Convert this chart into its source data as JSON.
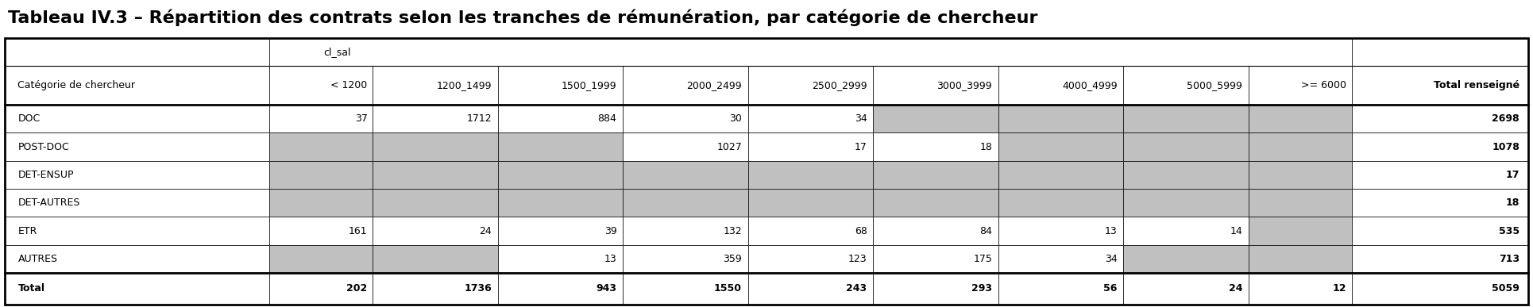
{
  "title": "Tableau IV.3 – Répartition des contrats selon les tranches de rémunération, par catégorie de chercheur",
  "col_header_row2": [
    "Catégorie de chercheur",
    "< 1200",
    "1200_1499",
    "1500_1999",
    "2000_2499",
    "2500_2999",
    "3000_3999",
    "4000_4999",
    "5000_5999",
    ">= 6000",
    "Total renseigné"
  ],
  "rows": [
    {
      "label": "DOC",
      "vals": [
        "37",
        "1712",
        "884",
        "30",
        "34",
        "",
        "",
        "",
        "",
        "2698"
      ],
      "gray": [
        false,
        false,
        false,
        false,
        false,
        true,
        true,
        true,
        true,
        false
      ]
    },
    {
      "label": "POST-DOC",
      "vals": [
        "",
        "",
        "",
        "1027",
        "17",
        "18",
        "",
        "",
        "",
        "1078"
      ],
      "gray": [
        true,
        true,
        true,
        false,
        false,
        false,
        true,
        true,
        true,
        false
      ]
    },
    {
      "label": "DET-ENSUP",
      "vals": [
        "",
        "",
        "",
        "",
        "",
        "",
        "",
        "",
        "",
        "17"
      ],
      "gray": [
        true,
        true,
        true,
        true,
        true,
        true,
        true,
        true,
        true,
        false
      ]
    },
    {
      "label": "DET-AUTRES",
      "vals": [
        "",
        "",
        "",
        "",
        "",
        "",
        "",
        "",
        "",
        "18"
      ],
      "gray": [
        true,
        true,
        true,
        true,
        true,
        true,
        true,
        true,
        true,
        false
      ]
    },
    {
      "label": "ETR",
      "vals": [
        "161",
        "24",
        "39",
        "132",
        "68",
        "84",
        "13",
        "14",
        "",
        "535"
      ],
      "gray": [
        false,
        false,
        false,
        false,
        false,
        false,
        false,
        false,
        true,
        false
      ]
    },
    {
      "label": "AUTRES",
      "vals": [
        "",
        "",
        "13",
        "359",
        "123",
        "175",
        "34",
        "",
        "",
        "713"
      ],
      "gray": [
        true,
        true,
        false,
        false,
        false,
        false,
        false,
        true,
        true,
        false
      ]
    }
  ],
  "total_row": {
    "label": "Total",
    "vals": [
      "202",
      "1736",
      "943",
      "1550",
      "243",
      "293",
      "56",
      "24",
      "12",
      "5059"
    ]
  },
  "gray_color": "#c0c0c0",
  "white_color": "#ffffff",
  "border_color": "#000000",
  "title_fontsize": 16,
  "header_fontsize": 9,
  "cell_fontsize": 9,
  "col_widths": [
    1.8,
    0.7,
    0.85,
    0.85,
    0.85,
    0.85,
    0.85,
    0.85,
    0.85,
    0.7,
    1.2
  ],
  "fig_width": 19.3,
  "fig_height": 3.87,
  "dpi": 100
}
